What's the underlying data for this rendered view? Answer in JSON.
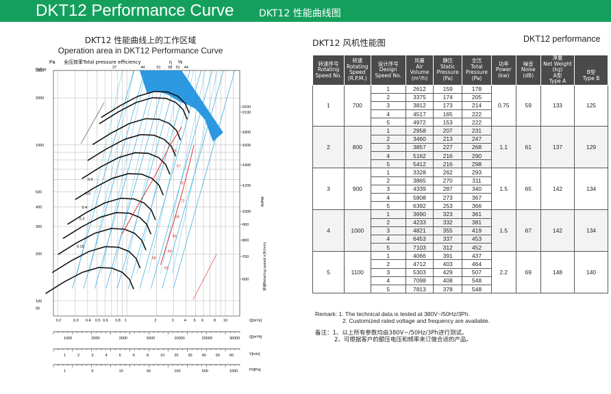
{
  "banner": {
    "title": "DKT12 Performance Curve",
    "subtitle": "DKT12 性能曲线图",
    "color": "#14a05c"
  },
  "chart_header": {
    "title_zh": "DKT12 性能曲线上的工作区域",
    "title_en": "Operation area in DKT12 Performance Curve",
    "pa_label": "Pa",
    "efficiency_label": "全压效率Total pressure efficiency",
    "eta_symbol": "η",
    "percent": "%",
    "pt_label": "Pt(Pa)"
  },
  "chart_data": {
    "type": "line",
    "title": "Operation area in DKT12 Performance Curve",
    "xlabel": "Q[m³/s]",
    "ylabel": "Pt(Pa)",
    "x_scale": "log",
    "y_scale": "log",
    "xlim": [
      0.18,
      14
    ],
    "ylim": [
      80,
      3000
    ],
    "grid": true,
    "pressure_ticks": [
      3000,
      2000,
      1000,
      500,
      400,
      300,
      200,
      100,
      90
    ],
    "pressure_tick_labels": [
      "3000",
      "2000",
      "1000",
      "500",
      "400",
      "300",
      "200",
      "100",
      "90"
    ],
    "flow_ticks": [
      0.2,
      0.3,
      0.4,
      0.5,
      0.6,
      0.8,
      1,
      2,
      3,
      4,
      5,
      6,
      8,
      10
    ],
    "flow_tick_labels": [
      "0.2",
      "0.3",
      "0.4",
      "0.5",
      "0.6",
      "0.8",
      "1",
      "2",
      "3",
      "4",
      "5",
      "6",
      "8",
      "10"
    ],
    "efficiency_top_labels": [
      "37",
      "44",
      "51",
      "58",
      "51",
      "44"
    ],
    "speed_labels_upper": [
      "2200",
      "2100",
      "1800",
      "1600",
      "1400",
      "1200"
    ],
    "speed_labels_lower": [
      "1000",
      "900",
      "800",
      "700",
      "600"
    ],
    "speed_axis_label": "R.P.M",
    "speed_axis_label_zh": "转速Rotating speed n(R/min)",
    "angle_labels": [
      "0.6",
      "0.5",
      "0.4",
      "0.3",
      "0.15"
    ],
    "red_efficiency_labels": [
      "55",
      "65",
      "67",
      "70",
      "72",
      "68",
      "66",
      "60",
      "58"
    ],
    "curves_rpm": [
      2200,
      2100,
      1800,
      1600,
      1400,
      1200,
      1000,
      900,
      800,
      700,
      600
    ],
    "aux_axes": [
      {
        "label": "Q[m³/h]",
        "ticks": [
          "1000",
          "2000",
          "3000",
          "5000",
          "10000",
          "20000",
          "30000"
        ]
      },
      {
        "label": "V[m/s]",
        "ticks": [
          "1",
          "2",
          "3",
          "4",
          "5",
          "6",
          "8",
          "10",
          "20",
          "30",
          "40",
          "50",
          "60"
        ]
      },
      {
        "label": "Pd[Pa]",
        "ticks": [
          "1",
          "5",
          "10",
          "50",
          "100",
          "500",
          "1000"
        ]
      }
    ],
    "operating_area_color": "#1a8fe0",
    "curve_color": "#111111",
    "efficiency_line_color": "#2aa7d8",
    "red_line_color": "#d62020"
  },
  "table": {
    "title": "DKT12 风机性能图",
    "title_right": "DKT12 performance",
    "headers": {
      "speed_no": {
        "zh": "转速序号",
        "en": "Rotating Speed No."
      },
      "rpm": {
        "zh": "转速",
        "en": "Rotating Speed (R.P.M.)"
      },
      "design_no": {
        "zh": "设计序号",
        "en": "Design Speed No."
      },
      "volume": {
        "zh": "风量",
        "en": "Air Volume",
        "unit": "(m³/h)"
      },
      "static": {
        "zh": "静压",
        "en": "Static Pressure",
        "unit": "(Pa)"
      },
      "total": {
        "zh": "全压",
        "en": "Total Pressure",
        "unit": "(Pa)"
      },
      "power": {
        "zh": "功率",
        "en": "Power",
        "unit": "(kw)"
      },
      "noise": {
        "zh": "噪音",
        "en": "Noise",
        "unit": "(dB)"
      },
      "weight": {
        "zh": "净重",
        "en": "Net Weight (kg)"
      },
      "type_a": {
        "zh": "A型",
        "en": "Type A"
      },
      "type_b": {
        "zh": "B型",
        "en": "Type B"
      }
    },
    "groups": [
      {
        "speed_no": "1",
        "rpm": "700",
        "power": "0.75",
        "noise": "59",
        "weight_a": "133",
        "weight_b": "125",
        "rows": [
          [
            "1",
            "2612",
            "159",
            "178"
          ],
          [
            "2",
            "3375",
            "174",
            "205"
          ],
          [
            "3",
            "3812",
            "173",
            "214"
          ],
          [
            "4",
            "4517",
            "165",
            "222"
          ],
          [
            "5",
            "4972",
            "153",
            "222"
          ]
        ]
      },
      {
        "speed_no": "2",
        "rpm": "800",
        "power": "1.1",
        "noise": "61",
        "weight_a": "137",
        "weight_b": "129",
        "rows": [
          [
            "1",
            "2958",
            "207",
            "231"
          ],
          [
            "2",
            "3460",
            "213",
            "247"
          ],
          [
            "3",
            "3857",
            "227",
            "268"
          ],
          [
            "4",
            "5162",
            "216",
            "290"
          ],
          [
            "5",
            "5412",
            "216",
            "298"
          ]
        ]
      },
      {
        "speed_no": "3",
        "rpm": "900",
        "power": "1.5",
        "noise": "65",
        "weight_a": "142",
        "weight_b": "134",
        "rows": [
          [
            "1",
            "3328",
            "262",
            "293"
          ],
          [
            "2",
            "3865",
            "270",
            "311"
          ],
          [
            "3",
            "4339",
            "287",
            "340"
          ],
          [
            "4",
            "5808",
            "273",
            "367"
          ],
          [
            "5",
            "6392",
            "253",
            "366"
          ]
        ]
      },
      {
        "speed_no": "4",
        "rpm": "1000",
        "power": "1.5",
        "noise": "67",
        "weight_a": "142",
        "weight_b": "134",
        "rows": [
          [
            "1",
            "3690",
            "323",
            "361"
          ],
          [
            "2",
            "4233",
            "332",
            "381"
          ],
          [
            "3",
            "4821",
            "355",
            "419"
          ],
          [
            "4",
            "6453",
            "337",
            "453"
          ],
          [
            "5",
            "7103",
            "312",
            "452"
          ]
        ]
      },
      {
        "speed_no": "5",
        "rpm": "1100",
        "power": "2.2",
        "noise": "69",
        "weight_a": "148",
        "weight_b": "140",
        "rows": [
          [
            "1",
            "4066",
            "391",
            "437"
          ],
          [
            "2",
            "4712",
            "403",
            "464"
          ],
          [
            "3",
            "5303",
            "429",
            "507"
          ],
          [
            "4",
            "7098",
            "408",
            "548"
          ],
          [
            "5",
            "7813",
            "378",
            "548"
          ]
        ]
      }
    ]
  },
  "remarks": {
    "en_1": "Remark: 1. The technical data is tested at 380V~/50Hz/3Ph.",
    "en_2": "2. Customized rated voltage and frequency are available.",
    "zh_1": "备注：1、以上所有参数均由380V~/50Hz/3Ph进行测试。",
    "zh_2": "2、可根据客户的额压电压和频率来订做合适的产品。"
  }
}
